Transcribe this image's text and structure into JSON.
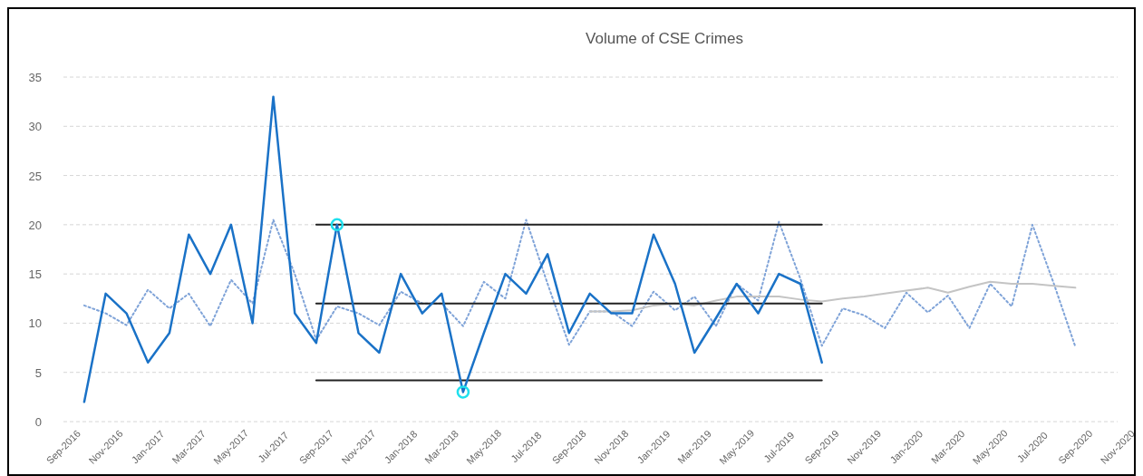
{
  "chart_data": {
    "type": "line",
    "title": "Volume of CSE Crimes",
    "xlim": [
      "2016-09",
      "2020-11"
    ],
    "xticks": [
      {
        "value": "2016-09",
        "label": "Sep-2016"
      },
      {
        "value": "2016-11",
        "label": "Nov-2016"
      },
      {
        "value": "2017-01",
        "label": "Jan-2017"
      },
      {
        "value": "2017-03",
        "label": "Mar-2017"
      },
      {
        "value": "2017-05",
        "label": "May-2017"
      },
      {
        "value": "2017-07",
        "label": "Jul-2017"
      },
      {
        "value": "2017-09",
        "label": "Sep-2017"
      },
      {
        "value": "2017-11",
        "label": "Nov-2017"
      },
      {
        "value": "2018-01",
        "label": "Jan-2018"
      },
      {
        "value": "2018-03",
        "label": "Mar-2018"
      },
      {
        "value": "2018-05",
        "label": "May-2018"
      },
      {
        "value": "2018-07",
        "label": "Jul-2018"
      },
      {
        "value": "2018-09",
        "label": "Sep-2018"
      },
      {
        "value": "2018-11",
        "label": "Nov-2018"
      },
      {
        "value": "2019-01",
        "label": "Jan-2019"
      },
      {
        "value": "2019-03",
        "label": "Mar-2019"
      },
      {
        "value": "2019-05",
        "label": "May-2019"
      },
      {
        "value": "2019-07",
        "label": "Jul-2019"
      },
      {
        "value": "2019-09",
        "label": "Sep-2019"
      },
      {
        "value": "2019-11",
        "label": "Nov-2019"
      },
      {
        "value": "2020-01",
        "label": "Jan-2020"
      },
      {
        "value": "2020-03",
        "label": "Mar-2020"
      },
      {
        "value": "2020-05",
        "label": "May-2020"
      },
      {
        "value": "2020-07",
        "label": "Jul-2020"
      },
      {
        "value": "2020-09",
        "label": "Sep-2020"
      },
      {
        "value": "2020-11",
        "label": "Nov-2020"
      }
    ],
    "ylim": [
      0,
      35
    ],
    "yticks": [
      0,
      5,
      10,
      15,
      20,
      25,
      30,
      35
    ],
    "grid": "y",
    "series": [
      {
        "line_style": "dotted",
        "color": "#7fa3d8",
        "x": [
          "2016-10",
          "2016-11",
          "2016-12",
          "2017-01",
          "2017-02",
          "2017-03",
          "2017-04",
          "2017-05",
          "2017-06",
          "2017-07",
          "2017-08",
          "2017-09",
          "2017-10",
          "2017-11",
          "2017-12",
          "2018-01",
          "2018-02",
          "2018-03",
          "2018-04",
          "2018-05",
          "2018-06",
          "2018-07",
          "2018-08",
          "2018-09",
          "2018-10",
          "2018-11",
          "2018-12",
          "2019-01",
          "2019-02",
          "2019-03",
          "2019-04",
          "2019-05",
          "2019-06",
          "2019-07",
          "2019-08",
          "2019-09",
          "2019-10",
          "2019-11",
          "2019-12",
          "2020-01",
          "2020-02",
          "2020-03",
          "2020-04",
          "2020-05",
          "2020-06",
          "2020-07",
          "2020-08",
          "2020-09"
        ],
        "values": [
          11.8,
          11,
          9.8,
          13.4,
          11.5,
          13,
          9.7,
          14.4,
          12,
          20.5,
          15,
          8.3,
          11.7,
          11,
          9.8,
          13.2,
          12,
          12,
          9.7,
          14.2,
          12.5,
          20.5,
          14,
          7.8,
          11.2,
          11.2,
          9.7,
          13.2,
          11.3,
          12.7,
          9.7,
          14,
          12.3,
          20.3,
          14.5,
          7.7,
          11.5,
          10.8,
          9.5,
          13.1,
          11.1,
          12.8,
          9.5,
          14,
          11.7,
          20,
          14,
          7.6
        ]
      },
      {
        "line_style": "solid",
        "color": "#c4c4c4",
        "x": [
          "2018-10",
          "2018-11",
          "2018-12",
          "2019-01",
          "2019-02",
          "2019-03",
          "2019-04",
          "2019-05",
          "2019-06",
          "2019-07",
          "2019-08",
          "2019-09",
          "2019-10",
          "2019-11",
          "2019-12",
          "2020-01",
          "2020-02",
          "2020-03",
          "2020-04",
          "2020-05",
          "2020-06",
          "2020-07",
          "2020-08",
          "2020-09"
        ],
        "values": [
          11.2,
          11.2,
          11.3,
          11.8,
          12,
          11.8,
          12.3,
          12.7,
          12.7,
          12.7,
          12.4,
          12.2,
          12.5,
          12.7,
          13,
          13.3,
          13.6,
          13.1,
          13.7,
          14.2,
          14,
          14,
          13.8,
          13.6
        ]
      },
      {
        "type": "line",
        "line_style": "solid",
        "color": "#222222",
        "x": [
          "2017-09",
          "2019-09"
        ],
        "values": [
          20,
          20
        ]
      },
      {
        "type": "line",
        "line_style": "solid",
        "color": "#222222",
        "x": [
          "2017-09",
          "2019-09"
        ],
        "values": [
          12,
          12
        ]
      },
      {
        "type": "line",
        "line_style": "solid",
        "color": "#222222",
        "x": [
          "2017-09",
          "2019-09"
        ],
        "values": [
          4.2,
          4.2
        ]
      },
      {
        "line_style": "solid",
        "color": "#1a72c7",
        "x": [
          "2016-10",
          "2016-11",
          "2016-12",
          "2017-01",
          "2017-02",
          "2017-03",
          "2017-04",
          "2017-05",
          "2017-06",
          "2017-07",
          "2017-08",
          "2017-09",
          "2017-10",
          "2017-11",
          "2017-12",
          "2018-01",
          "2018-02",
          "2018-03",
          "2018-04",
          "2018-05",
          "2018-06",
          "2018-07",
          "2018-08",
          "2018-09",
          "2018-10",
          "2018-11",
          "2018-12",
          "2019-01",
          "2019-02",
          "2019-03",
          "2019-04",
          "2019-05",
          "2019-06",
          "2019-07",
          "2019-08",
          "2019-09"
        ],
        "values": [
          2,
          13,
          11,
          6,
          9,
          19,
          15,
          20,
          10,
          33,
          11,
          8,
          20,
          9,
          7,
          15,
          11,
          13,
          3,
          9,
          15,
          13,
          17,
          9,
          13,
          11,
          11,
          19,
          14,
          7,
          10.5,
          14,
          11,
          15,
          14,
          6
        ]
      },
      {
        "type": "scatter",
        "marker": "circle",
        "color": "#1fe0ee",
        "x": [
          "2017-10",
          "2018-04"
        ],
        "values": [
          20,
          3
        ]
      }
    ]
  }
}
